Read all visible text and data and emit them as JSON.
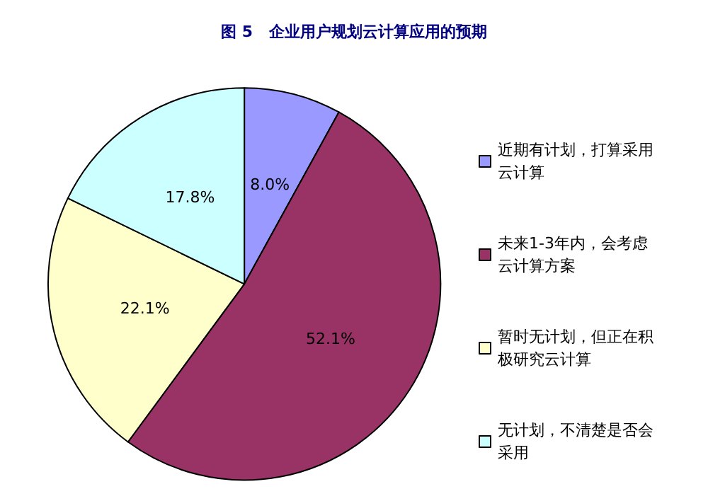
{
  "chart_data": {
    "type": "pie",
    "title": "图 5   企业用户规划云计算应用的预期",
    "categories": [
      "近期有计划，打算采用云计算",
      "未来1-3年内，会考虑云计算方案",
      "暂时无计划，但正在积极研究云计算",
      "无计划，不清楚是否会采用"
    ],
    "values": [
      8.0,
      52.1,
      22.1,
      17.8
    ],
    "value_labels": [
      "8.0%",
      "52.1%",
      "22.1%",
      "17.8%"
    ],
    "colors": [
      "#9999ff",
      "#993366",
      "#ffffcc",
      "#ccffff"
    ],
    "legend": "right"
  }
}
